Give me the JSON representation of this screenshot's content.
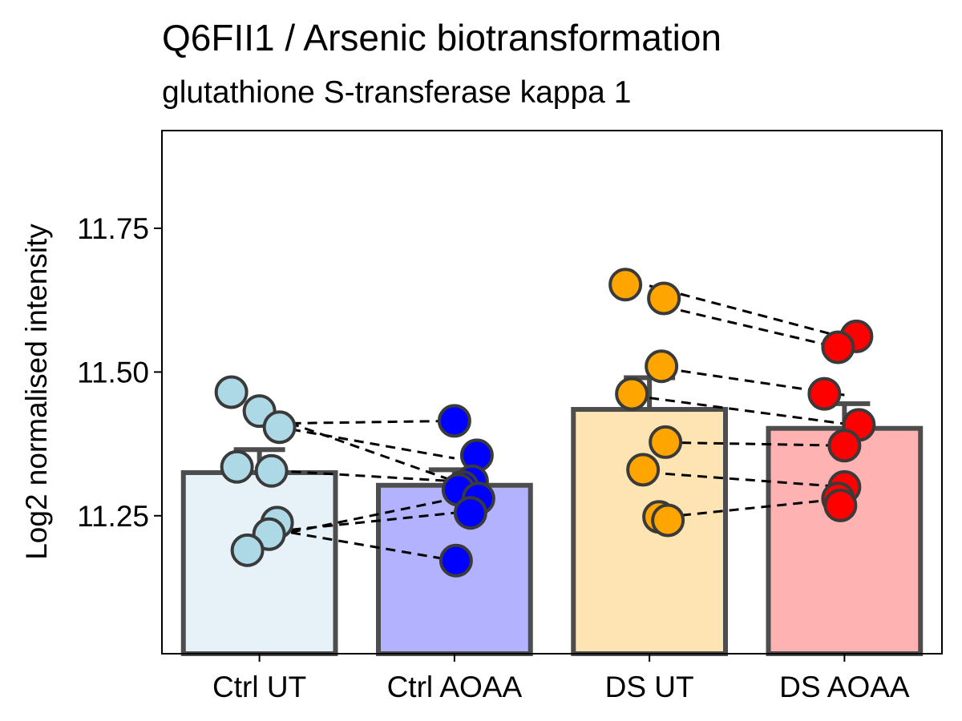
{
  "chart_data": {
    "type": "bar",
    "title": "Q6FII1 / Arsenic biotransformation",
    "subtitle": "glutathione S-transferase kappa 1",
    "xlabel": "",
    "ylabel": "Log2 normalised intensity",
    "ylim": [
      11.01,
      11.92
    ],
    "yticks": [
      11.25,
      11.5,
      11.75
    ],
    "ytick_labels": [
      "11.25",
      "11.50",
      "11.75"
    ],
    "categories": [
      "Ctrl UT",
      "Ctrl AOAA",
      "DS UT",
      "DS AOAA"
    ],
    "values": [
      11.325,
      11.303,
      11.435,
      11.402
    ],
    "error_upper": [
      11.365,
      11.33,
      11.49,
      11.445
    ],
    "bar_fill": [
      "#e6f2f8",
      "#b2b2ff",
      "#fde4b2",
      "#ffb2b2"
    ],
    "bar_border": "#4d4d4d",
    "point_fill": [
      "#add8e6",
      "#0000ff",
      "#ffa500",
      "#ff0000"
    ],
    "points": [
      [
        11.465,
        11.432,
        11.404,
        11.335,
        11.328,
        11.238,
        11.218,
        11.19
      ],
      [
        11.415,
        11.355,
        11.31,
        11.3,
        11.295,
        11.28,
        11.255,
        11.172
      ],
      [
        11.652,
        11.628,
        11.51,
        11.462,
        11.378,
        11.33,
        11.248,
        11.242
      ],
      [
        11.562,
        11.543,
        11.462,
        11.408,
        11.372,
        11.3,
        11.28,
        11.268
      ]
    ],
    "pairs": [
      {
        "from": [
          0,
          11.41
        ],
        "to": [
          1,
          11.415
        ]
      },
      {
        "from": [
          0,
          11.41
        ],
        "to": [
          1,
          11.35
        ]
      },
      {
        "from": [
          0,
          11.43
        ],
        "to": [
          1,
          11.31
        ]
      },
      {
        "from": [
          0,
          11.33
        ],
        "to": [
          1,
          11.31
        ]
      },
      {
        "from": [
          0,
          11.22
        ],
        "to": [
          1,
          11.255
        ]
      },
      {
        "from": [
          0,
          11.21
        ],
        "to": [
          1,
          11.28
        ]
      },
      {
        "from": [
          0,
          11.23
        ],
        "to": [
          1,
          11.172
        ]
      },
      {
        "from": [
          2,
          11.65
        ],
        "to": [
          3,
          11.56
        ]
      },
      {
        "from": [
          2,
          11.62
        ],
        "to": [
          3,
          11.54
        ]
      },
      {
        "from": [
          2,
          11.51
        ],
        "to": [
          3,
          11.46
        ]
      },
      {
        "from": [
          2,
          11.455
        ],
        "to": [
          3,
          11.41
        ]
      },
      {
        "from": [
          2,
          11.378
        ],
        "to": [
          3,
          11.372
        ]
      },
      {
        "from": [
          2,
          11.325
        ],
        "to": [
          3,
          11.3
        ]
      },
      {
        "from": [
          2,
          11.245
        ],
        "to": [
          3,
          11.28
        ]
      }
    ],
    "grid": false,
    "legend": "none"
  }
}
